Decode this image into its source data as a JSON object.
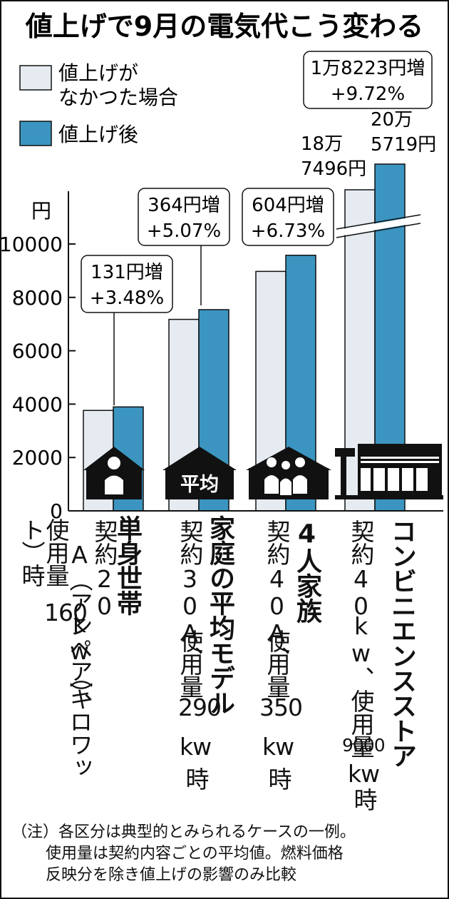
{
  "chart_data": {
    "type": "bar",
    "title": "値上げで9月の電気代こう変わる",
    "ylabel": "円",
    "ylim": [
      0,
      10000
    ],
    "yticks": [
      0,
      2000,
      4000,
      6000,
      8000,
      10000
    ],
    "axis_break": true,
    "grid": false,
    "legend": {
      "position": "top-left"
    },
    "categories": [
      "単身世帯",
      "家庭の平均モデル",
      "4人家族",
      "コンビニエンスストア"
    ],
    "category_details": [
      "契約20A（アンペア）、使用量160kw（キロワット）時",
      "契約30A、使用量290kw時",
      "契約40A、使用量350kw時",
      "契約40kw、使用量9000kw時"
    ],
    "series": [
      {
        "name": "値上げがなかった場合",
        "color": "#e6ebf2",
        "values": [
          3764,
          7176,
          8974,
          187496
        ]
      },
      {
        "name": "値上げ後",
        "color": "#3b95c0",
        "values": [
          3895,
          7540,
          9578,
          205719
        ]
      }
    ],
    "annotations": [
      {
        "line1": "131円増",
        "line2": "+3.48%"
      },
      {
        "line1": "364円増",
        "line2": "+5.07%"
      },
      {
        "line1": "604円増",
        "line2": "+6.73%"
      },
      {
        "line1": "1万8223円増",
        "line2": "+9.72%"
      }
    ],
    "value_labels": {
      "before_line1": "18万",
      "before_line2": "7496円",
      "after_line1": "20万",
      "after_line2": "5719円"
    },
    "building_labels": [
      "平均"
    ]
  },
  "legend": {
    "item1_line1": "値上げが",
    "item1_line2": "なかつた場合",
    "item2": "値上げ後"
  },
  "description_lines": [
    [
      "契約20",
      "A（アンペア）、",
      "使用量",
      "160",
      "kw（キロワッ",
      "ト）時"
    ],
    [
      "契約30A、",
      "使用量",
      "290",
      "kw",
      "時"
    ],
    [
      "契約40A、",
      "使用量",
      "350",
      "kw",
      "時"
    ],
    [
      "契約40",
      "kw、使用量",
      "9000",
      "kw",
      "時"
    ]
  ],
  "note": {
    "line1": "（注）各区分は典型的とみられるケースの一例。",
    "line2": "使用量は契約内容ごとの平均値。燃料価格",
    "line3": "反映分を除き値上げの影響のみ比較"
  },
  "colors": {
    "before": "#e6ebf2",
    "after": "#3b95c0",
    "stroke": "#111111"
  }
}
